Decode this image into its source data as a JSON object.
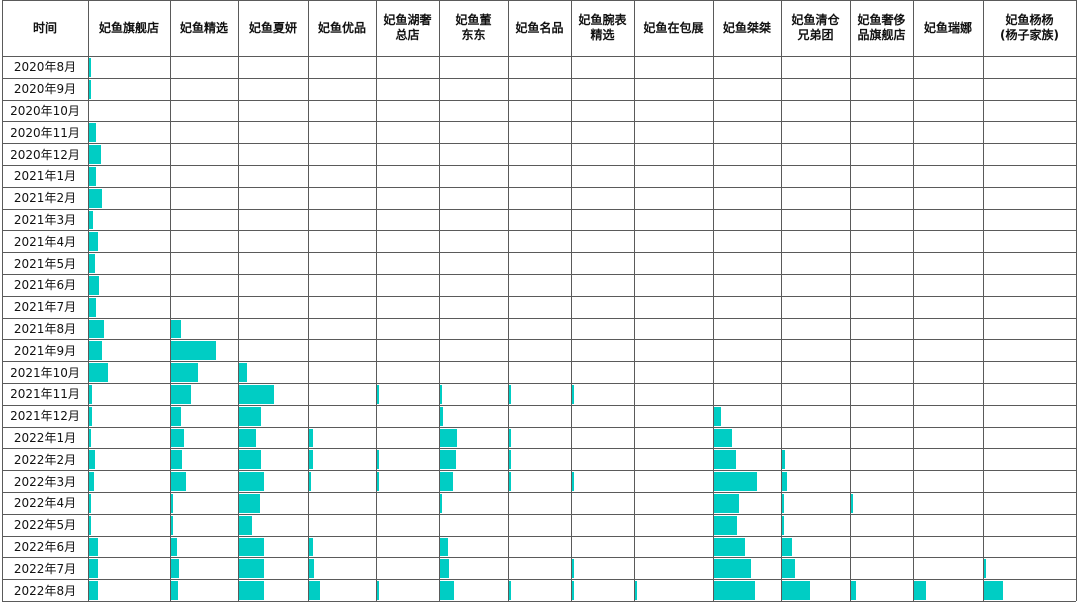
{
  "chart_data": {
    "type": "table",
    "color": "#00CDC4",
    "corner_label": "时间",
    "columns": [
      "妃鱼旗舰店",
      "妃鱼精选",
      "妃鱼夏妍",
      "妃鱼优品",
      "妃鱼湖奢\n总店",
      "妃鱼董\n东东",
      "妃鱼名品",
      "妃鱼腕表\n精选",
      "妃鱼在包展",
      "妃鱼桀桀",
      "妃鱼清仓\n兄弟团",
      "妃鱼奢侈\n品旗舰店",
      "妃鱼瑞娜",
      "妃鱼杨杨\n(杨子家族)"
    ],
    "rows": [
      "2020年8月",
      "2020年9月",
      "2020年10月",
      "2020年11月",
      "2020年12月",
      "2021年1月",
      "2021年2月",
      "2021年3月",
      "2021年4月",
      "2021年5月",
      "2021年6月",
      "2021年7月",
      "2021年8月",
      "2021年9月",
      "2021年10月",
      "2021年11月",
      "2021年12月",
      "2022年1月",
      "2022年2月",
      "2022年3月",
      "2022年4月",
      "2022年5月",
      "2022年6月",
      "2022年7月",
      "2022年8月"
    ],
    "values": [
      [
        0.4,
        0,
        0,
        0,
        0,
        0,
        0,
        0,
        0,
        0,
        0,
        0,
        0,
        0
      ],
      [
        0.3,
        0,
        0,
        0,
        0,
        0,
        0,
        0,
        0,
        0,
        0,
        0,
        0,
        0
      ],
      [
        0,
        0,
        0,
        0,
        0,
        0,
        0,
        0,
        0,
        0,
        0,
        0,
        0,
        0
      ],
      [
        1.8,
        0,
        0,
        0,
        0,
        0,
        0,
        0,
        0,
        0,
        0,
        0,
        0,
        0
      ],
      [
        3.2,
        0,
        0,
        0,
        0,
        0,
        0,
        0,
        0,
        0,
        0,
        0,
        0,
        0
      ],
      [
        2.0,
        0,
        0,
        0,
        0,
        0,
        0,
        0,
        0,
        0,
        0,
        0,
        0,
        0
      ],
      [
        3.4,
        0,
        0,
        0,
        0,
        0,
        0,
        0,
        0,
        0,
        0,
        0,
        0,
        0
      ],
      [
        1.2,
        0,
        0,
        0,
        0,
        0,
        0,
        0,
        0,
        0,
        0,
        0,
        0,
        0
      ],
      [
        2.3,
        0,
        0,
        0,
        0,
        0,
        0,
        0,
        0,
        0,
        0,
        0,
        0,
        0
      ],
      [
        1.6,
        0,
        0,
        0,
        0,
        0,
        0,
        0,
        0,
        0,
        0,
        0,
        0,
        0
      ],
      [
        2.6,
        0,
        0,
        0,
        0,
        0,
        0,
        0,
        0,
        0,
        0,
        0,
        0,
        0
      ],
      [
        2.0,
        0,
        0,
        0,
        0,
        0,
        0,
        0,
        0,
        0,
        0,
        0,
        0,
        0
      ],
      [
        4.0,
        3.3,
        0,
        0,
        0,
        0,
        0,
        0,
        0,
        0,
        0,
        0,
        0,
        0
      ],
      [
        3.6,
        14.7,
        0,
        0,
        0,
        0,
        0,
        0,
        0,
        0,
        0,
        0,
        0,
        0
      ],
      [
        5.0,
        8.8,
        2.5,
        0,
        0,
        0,
        0,
        0,
        0,
        0,
        0,
        0,
        0,
        0
      ],
      [
        0.9,
        6.6,
        11.0,
        0,
        0.5,
        0.7,
        0.8,
        0.5,
        0,
        0,
        0,
        0,
        0,
        0
      ],
      [
        0.9,
        3.2,
        6.9,
        0,
        0,
        1.0,
        0,
        0,
        0,
        2.2,
        0,
        0,
        0,
        0
      ],
      [
        0.5,
        4.2,
        5.4,
        1.4,
        0,
        5.3,
        0.4,
        0,
        0,
        5.8,
        0,
        0,
        0,
        0
      ],
      [
        1.6,
        3.7,
        6.9,
        1.2,
        0.5,
        5.0,
        0.5,
        0,
        0,
        7.2,
        0.9,
        0,
        0,
        0
      ],
      [
        1.4,
        4.8,
        7.8,
        0.8,
        0.5,
        4.2,
        0.5,
        0.4,
        0,
        13.8,
        1.6,
        0,
        0,
        0
      ],
      [
        0.6,
        0.8,
        6.7,
        0,
        0,
        0.3,
        0,
        0,
        0,
        8.0,
        0.6,
        0.2,
        0,
        0
      ],
      [
        0.2,
        0.3,
        4.1,
        0,
        0,
        0,
        0,
        0,
        0,
        7.6,
        0.6,
        0,
        0,
        0
      ],
      [
        2.3,
        2.0,
        7.7,
        1.2,
        0,
        2.5,
        0,
        0,
        0,
        10.0,
        3.2,
        0,
        0,
        0
      ],
      [
        2.3,
        2.7,
        7.7,
        1.5,
        0,
        3.0,
        0,
        0.4,
        0,
        12.0,
        4.1,
        0,
        0,
        0.2
      ],
      [
        2.4,
        2.3,
        7.7,
        3.6,
        0.5,
        4.4,
        0.5,
        0.5,
        0.4,
        13.4,
        8.9,
        1.8,
        3.8,
        4.5
      ]
    ],
    "max_value": 22
  }
}
